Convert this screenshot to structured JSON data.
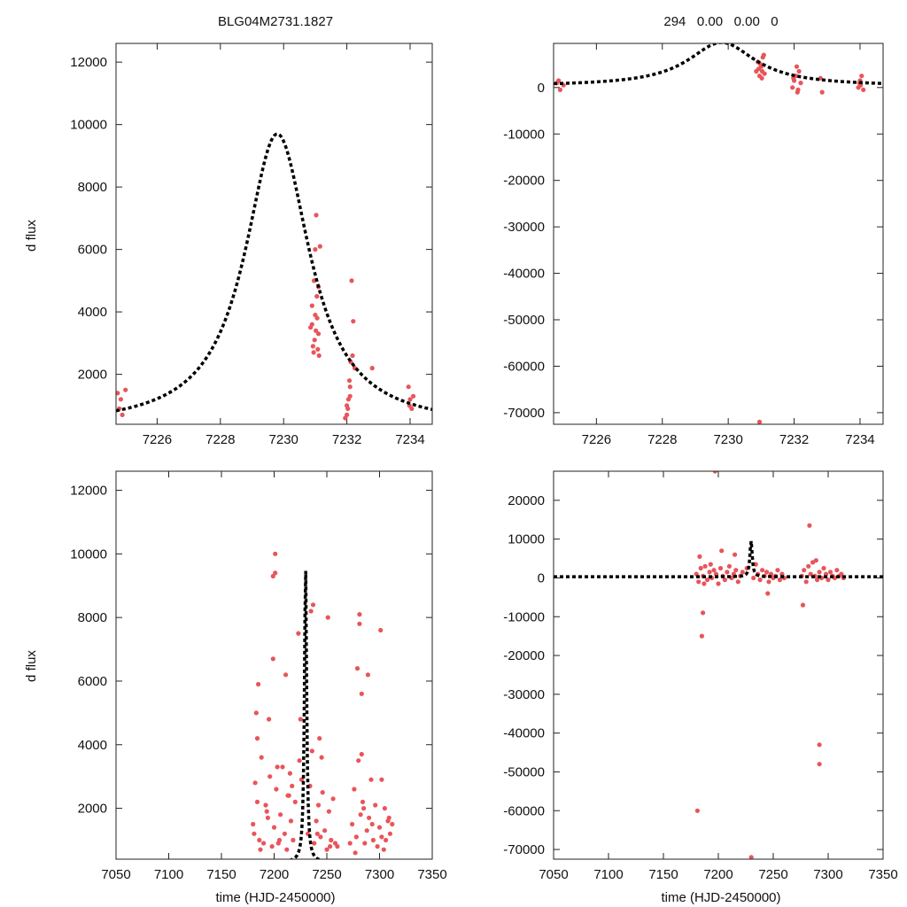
{
  "figure": {
    "title_left": "BLG04M2731.1827",
    "title_right": "294   0.00   0.00   0",
    "ylabel": "d flux",
    "xlabel": "time (HJD-2450000)"
  },
  "colors": {
    "data": "#e8555a",
    "model": "#000000"
  },
  "chart_data": [
    {
      "type": "scatter",
      "panel": "top-left",
      "xlim": [
        7224.7,
        7234.7
      ],
      "ylim": [
        400,
        12600
      ],
      "xticks": [
        7226,
        7228,
        7230,
        7232,
        7234
      ],
      "yticks": [
        2000,
        4000,
        6000,
        8000,
        10000,
        12000
      ],
      "model": {
        "t0": 7229.8,
        "peak": 9700,
        "base": 300,
        "tE": 1.25
      },
      "series": [
        {
          "x": [
            7224.75,
            7224.8,
            7224.85,
            7224.9,
            7225.0,
            7230.85,
            7230.9,
            7230.93,
            7230.96,
            7231.0,
            7231.03,
            7231.06,
            7231.1,
            7231.12,
            7231.05,
            7230.98,
            7231.08,
            7230.9,
            7231.15,
            7231.0,
            7231.1,
            7230.95,
            7231.02,
            7232.0,
            7232.05,
            7232.1,
            7232.15,
            7232.0,
            7232.08,
            7232.12,
            7232.2,
            7231.95,
            7232.03,
            7232.1,
            7232.18,
            7232.25,
            7232.8,
            7233.95,
            7234.0,
            7234.05,
            7234.1,
            7233.98
          ],
          "y": [
            1400,
            900,
            1200,
            700,
            1500,
            3500,
            4200,
            2900,
            5000,
            6000,
            7100,
            3800,
            3300,
            2600,
            4500,
            3100,
            2800,
            3600,
            6100,
            3900,
            4800,
            2700,
            3400,
            700,
            1200,
            1600,
            5000,
            1000,
            1800,
            2400,
            3700,
            600,
            900,
            1300,
            2600,
            2200,
            2200,
            1600,
            1200,
            900,
            1300,
            1000
          ]
        }
      ]
    },
    {
      "type": "scatter",
      "panel": "top-right",
      "xlim": [
        7224.7,
        7234.7
      ],
      "ylim": [
        -72500,
        9500
      ],
      "xticks": [
        7226,
        7228,
        7230,
        7232,
        7234
      ],
      "yticks": [
        0,
        -10000,
        -20000,
        -30000,
        -40000,
        -50000,
        -60000,
        -70000
      ],
      "model": {
        "t0": 7229.8,
        "peak": 9700,
        "base": 300,
        "tE": 1.25
      },
      "series": [
        {
          "x": [
            7224.8,
            7224.9,
            7225.0,
            7224.85,
            7230.85,
            7230.9,
            7230.95,
            7231.0,
            7231.05,
            7231.1,
            7230.92,
            7231.02,
            7231.08,
            7230.98,
            7231.03,
            7231.95,
            7232.0,
            7232.05,
            7232.1,
            7232.15,
            7232.2,
            7231.98,
            7232.08,
            7232.12,
            7232.8,
            7232.85,
            7233.95,
            7234.0,
            7234.05,
            7234.1,
            7233.98,
            7234.02,
            7230.95
          ],
          "y": [
            1000,
            -500,
            500,
            1500,
            3500,
            5500,
            2500,
            4500,
            6500,
            3000,
            4000,
            2000,
            7000,
            5000,
            3500,
            0,
            1500,
            2500,
            -1000,
            3500,
            1000,
            2000,
            4500,
            -500,
            2000,
            -1000,
            0,
            1500,
            2500,
            -500,
            1000,
            500,
            -72000
          ]
        }
      ]
    },
    {
      "type": "scatter",
      "panel": "bottom-left",
      "xlim": [
        7050,
        7350
      ],
      "ylim": [
        400,
        12600
      ],
      "xticks": [
        7050,
        7100,
        7150,
        7200,
        7250,
        7300,
        7350
      ],
      "yticks": [
        2000,
        4000,
        6000,
        8000,
        10000,
        12000
      ],
      "model": {
        "t0": 7229.8,
        "peak": 9700,
        "base": 300,
        "tE": 1.25
      },
      "series": [
        {
          "x": [
            7180,
            7182,
            7184,
            7186,
            7188,
            7190,
            7192,
            7194,
            7196,
            7198,
            7200,
            7202,
            7204,
            7206,
            7208,
            7210,
            7212,
            7214,
            7216,
            7218,
            7220,
            7224,
            7226,
            7232,
            7234,
            7236,
            7238,
            7240,
            7242,
            7244,
            7246,
            7248,
            7250,
            7252,
            7254,
            7256,
            7258,
            7260,
            7272,
            7274,
            7276,
            7278,
            7280,
            7282,
            7284,
            7286,
            7288,
            7290,
            7292,
            7294,
            7296,
            7298,
            7300,
            7302,
            7304,
            7306,
            7308,
            7310,
            7312,
            7183,
            7203,
            7223,
            7243,
            7281,
            7301,
            7201,
            7185,
            7199,
            7211,
            7237,
            7251,
            7279,
            7289,
            7309,
            7305,
            7195,
            7215,
            7235,
            7283,
            7184,
            7201,
            7281,
            7283,
            7302,
            7245,
            7225,
            7199,
            7213,
            7181,
            7187,
            7193,
            7205,
            7217,
            7241,
            7253,
            7277,
            7285,
            7293
          ],
          "y": [
            1500,
            2800,
            4200,
            1000,
            3600,
            900,
            2100,
            1700,
            3000,
            800,
            1400,
            2600,
            900,
            1800,
            3300,
            1200,
            700,
            2400,
            1600,
            1000,
            2200,
            3500,
            2900,
            1200,
            2700,
            3800,
            900,
            1600,
            2100,
            1100,
            2500,
            1300,
            700,
            1900,
            1000,
            2300,
            900,
            800,
            900,
            1500,
            2600,
            1100,
            3500,
            1800,
            2200,
            900,
            1300,
            1700,
            2900,
            1000,
            2100,
            800,
            1400,
            1100,
            700,
            1000,
            1600,
            1200,
            1500,
            5000,
            3300,
            7500,
            4200,
            7800,
            7600,
            9400,
            5900,
            9300,
            6200,
            8400,
            8000,
            6400,
            6200,
            1700,
            2000,
            4800,
            3100,
            8200,
            3700,
            2200,
            10000,
            8100,
            5600,
            2900,
            3600,
            4800,
            6700,
            2400,
            1200,
            700,
            1900,
            1000,
            2700,
            1200,
            800,
            600,
            2000,
            1500
          ]
        }
      ]
    },
    {
      "type": "scatter",
      "panel": "bottom-right",
      "xlim": [
        7050,
        7350
      ],
      "ylim": [
        -72500,
        27500
      ],
      "xticks": [
        7050,
        7100,
        7150,
        7200,
        7250,
        7300,
        7350
      ],
      "yticks": [
        20000,
        10000,
        0,
        -10000,
        -20000,
        -30000,
        -40000,
        -50000,
        -60000,
        -70000
      ],
      "model": {
        "t0": 7229.8,
        "peak": 9700,
        "base": 300,
        "tE": 1.25
      },
      "series": [
        {
          "x": [
            7180,
            7182,
            7184,
            7186,
            7188,
            7190,
            7192,
            7194,
            7196,
            7198,
            7200,
            7202,
            7204,
            7206,
            7208,
            7210,
            7212,
            7214,
            7216,
            7218,
            7220,
            7222,
            7226,
            7232,
            7234,
            7236,
            7238,
            7240,
            7242,
            7244,
            7246,
            7248,
            7250,
            7252,
            7254,
            7256,
            7258,
            7260,
            7276,
            7278,
            7280,
            7282,
            7284,
            7286,
            7288,
            7290,
            7292,
            7294,
            7296,
            7298,
            7300,
            7302,
            7304,
            7306,
            7308,
            7310,
            7312,
            7314,
            7183,
            7187,
            7193,
            7203,
            7215,
            7245,
            7277,
            7283,
            7289,
            7197,
            7185,
            7181,
            7230,
            7186,
            7292,
            7292
          ],
          "y": [
            1000,
            -1000,
            2500,
            500,
            3000,
            -500,
            1500,
            0,
            2000,
            1000,
            -1500,
            2500,
            500,
            -500,
            1500,
            3000,
            0,
            1000,
            2000,
            -1000,
            500,
            1500,
            2500,
            0,
            3500,
            1000,
            -500,
            2000,
            500,
            1500,
            -1000,
            1000,
            0,
            500,
            2000,
            -500,
            1000,
            0,
            500,
            2000,
            -1000,
            3000,
            1000,
            4000,
            500,
            -500,
            1500,
            0,
            2500,
            1000,
            -500,
            1500,
            500,
            0,
            2000,
            500,
            1000,
            0,
            5500,
            -1500,
            3500,
            7000,
            6000,
            -4000,
            -7000,
            13500,
            4500,
            27500,
            -15000,
            -60000,
            -72000,
            -9000,
            -48000,
            -43000
          ]
        }
      ]
    }
  ]
}
